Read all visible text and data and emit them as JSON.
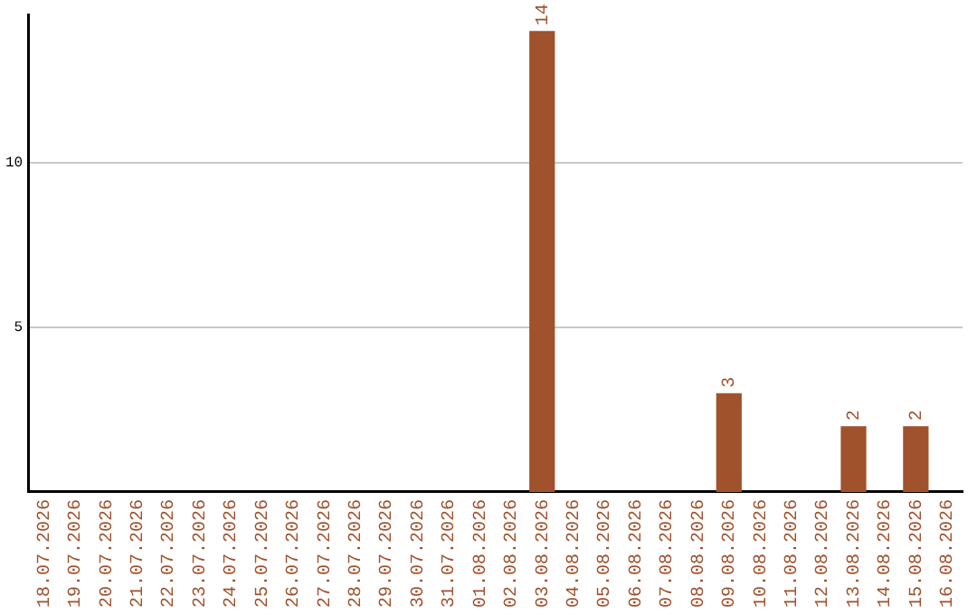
{
  "chart_data": {
    "type": "bar",
    "categories": [
      "18.07.2026",
      "19.07.2026",
      "20.07.2026",
      "21.07.2026",
      "22.07.2026",
      "23.07.2026",
      "24.07.2026",
      "25.07.2026",
      "26.07.2026",
      "27.07.2026",
      "28.07.2026",
      "29.07.2026",
      "30.07.2026",
      "31.07.2026",
      "01.08.2026",
      "02.08.2026",
      "03.08.2026",
      "04.08.2026",
      "05.08.2026",
      "06.08.2026",
      "07.08.2026",
      "08.08.2026",
      "09.08.2026",
      "10.08.2026",
      "11.08.2026",
      "12.08.2026",
      "13.08.2026",
      "14.08.2026",
      "15.08.2026",
      "16.08.2026"
    ],
    "values": [
      0,
      0,
      0,
      0,
      0,
      0,
      0,
      0,
      0,
      0,
      0,
      0,
      0,
      0,
      0,
      0,
      14,
      0,
      0,
      0,
      0,
      0,
      3,
      0,
      0,
      0,
      2,
      0,
      2,
      0
    ],
    "value_labels": [
      null,
      null,
      null,
      null,
      null,
      null,
      null,
      null,
      null,
      null,
      null,
      null,
      null,
      null,
      null,
      null,
      "14",
      null,
      null,
      null,
      null,
      null,
      "3",
      null,
      null,
      null,
      "2",
      null,
      "2",
      null
    ],
    "color": "#a0522d",
    "ylim": [
      0,
      14.5
    ],
    "yticks": [
      5,
      10
    ],
    "grid": "y"
  }
}
